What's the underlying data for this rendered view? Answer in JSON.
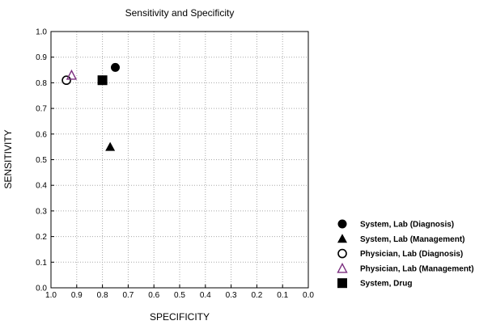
{
  "chart_data": {
    "type": "scatter",
    "title": "Sensitivity and Specificity",
    "xlabel": "SPECIFICITY",
    "ylabel": "SENSITIVITY",
    "xlim": [
      1.0,
      0.0
    ],
    "ylim": [
      0.0,
      1.0
    ],
    "x_reversed": true,
    "grid": true,
    "x_ticks": [
      "1.0",
      "0.9",
      "0.8",
      "0.7",
      "0.6",
      "0.5",
      "0.4",
      "0.3",
      "0.2",
      "0.1",
      "0.0"
    ],
    "y_ticks": [
      "0.0",
      "0.1",
      "0.2",
      "0.3",
      "0.4",
      "0.5",
      "0.6",
      "0.7",
      "0.8",
      "0.9",
      "1.0"
    ],
    "legend_position": "bottom-right",
    "series": [
      {
        "name": "System, Lab (Diagnosis)",
        "marker": "filled-circle",
        "color": "#000000",
        "x": [
          0.75
        ],
        "y": [
          0.86
        ]
      },
      {
        "name": "System, Lab (Management)",
        "marker": "filled-triangle",
        "color": "#000000",
        "x": [
          0.77
        ],
        "y": [
          0.55
        ]
      },
      {
        "name": "Physician, Lab (Diagnosis)",
        "marker": "open-circle",
        "color": "#000000",
        "x": [
          0.94
        ],
        "y": [
          0.81
        ]
      },
      {
        "name": "Physician, Lab (Management)",
        "marker": "open-triangle",
        "color": "#7b2f7f",
        "x": [
          0.92
        ],
        "y": [
          0.83
        ]
      },
      {
        "name": "System, Drug",
        "marker": "filled-square",
        "color": "#000000",
        "x": [
          0.8
        ],
        "y": [
          0.81
        ]
      }
    ]
  }
}
